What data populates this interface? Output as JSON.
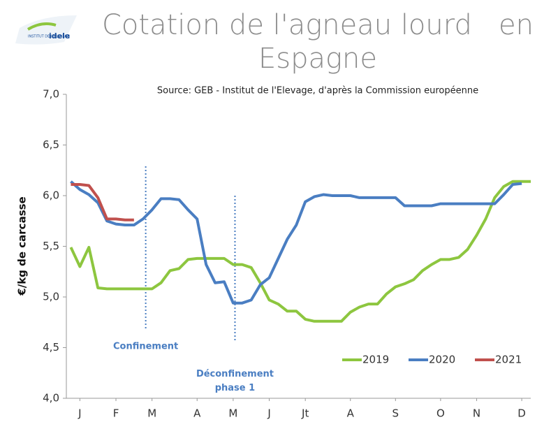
{
  "logo": {
    "line1": "INSTITUT DE L'ELEVAGE",
    "brand": "idele"
  },
  "chart_data": {
    "type": "line",
    "title": "Cotation de l'agneau lourd   en Espagne",
    "subtitle": "Source: GEB - Institut de l'Elevage, d'après la Commission européenne",
    "y_label": "€/kg de carcasse",
    "x": [
      1,
      2,
      3,
      4,
      5,
      6,
      7,
      8,
      9,
      10,
      11,
      12,
      13,
      14,
      15,
      16,
      17,
      18,
      19,
      20,
      21,
      22,
      23,
      24,
      25,
      26,
      27,
      28,
      29,
      30,
      31,
      32,
      33,
      34,
      35,
      36,
      37,
      38,
      39,
      40,
      41,
      42,
      43,
      44,
      45,
      46,
      47,
      48,
      49,
      50,
      51,
      52
    ],
    "xlim": [
      0.5,
      52
    ],
    "xticks": [
      {
        "value": 2,
        "label": "J"
      },
      {
        "value": 6,
        "label": "F"
      },
      {
        "value": 10,
        "label": "M"
      },
      {
        "value": 15,
        "label": "A"
      },
      {
        "value": 19,
        "label": "M"
      },
      {
        "value": 23,
        "label": "J"
      },
      {
        "value": 27,
        "label": "Jt"
      },
      {
        "value": 32,
        "label": "A"
      },
      {
        "value": 37,
        "label": "S"
      },
      {
        "value": 42,
        "label": "O"
      },
      {
        "value": 46,
        "label": "N"
      },
      {
        "value": 51,
        "label": "D"
      }
    ],
    "ylim": [
      4,
      7
    ],
    "yticks": [
      {
        "value": 4,
        "label": "4,0"
      },
      {
        "value": 4.5,
        "label": "4,5"
      },
      {
        "value": 5,
        "label": "5,0"
      },
      {
        "value": 5.5,
        "label": "5,5"
      },
      {
        "value": 6,
        "label": "6,0"
      },
      {
        "value": 6.5,
        "label": "6,5"
      },
      {
        "value": 7,
        "label": "7,0"
      }
    ],
    "annotations": [
      {
        "text": "Confinement",
        "x": 9.3
      },
      {
        "text": "Déconfinement phase 1",
        "x": 19.2
      }
    ],
    "series": [
      {
        "name": "2019",
        "color": "#8dc63f",
        "values": [
          5.49,
          5.3,
          5.49,
          5.09,
          5.08,
          5.08,
          5.08,
          5.08,
          5.08,
          5.08,
          5.14,
          5.26,
          5.28,
          5.37,
          5.38,
          5.38,
          5.38,
          5.38,
          5.32,
          5.32,
          5.29,
          5.14,
          4.97,
          4.93,
          4.86,
          4.86,
          4.78,
          4.76,
          4.76,
          4.76,
          4.76,
          4.85,
          4.9,
          4.93,
          4.93,
          5.03,
          5.1,
          5.13,
          5.17,
          5.26,
          5.32,
          5.37,
          5.37,
          5.39,
          5.47,
          5.61,
          5.77,
          5.98,
          6.09,
          6.14,
          6.14,
          6.14
        ]
      },
      {
        "name": "2020",
        "color": "#4a7ec2",
        "values": [
          6.14,
          6.06,
          6.01,
          5.93,
          5.75,
          5.72,
          5.71,
          5.71,
          5.77,
          5.86,
          5.97,
          5.97,
          5.96,
          5.86,
          5.77,
          5.32,
          5.14,
          5.15,
          4.94,
          4.94,
          4.97,
          5.12,
          5.19,
          5.38,
          5.57,
          5.71,
          5.94,
          5.99,
          6.01,
          6.0,
          6.0,
          6.0,
          5.98,
          5.98,
          5.98,
          5.98,
          5.98,
          5.9,
          5.9,
          5.9,
          5.9,
          5.92,
          5.92,
          5.92,
          5.92,
          5.92,
          5.92,
          5.92,
          6.01,
          6.11,
          6.12,
          null
        ]
      },
      {
        "name": "2021",
        "color": "#c0504d",
        "values": [
          6.11,
          6.11,
          6.1,
          5.98,
          5.77,
          5.77,
          5.76,
          5.76,
          null,
          null,
          null,
          null,
          null,
          null,
          null,
          null,
          null,
          null,
          null,
          null,
          null,
          null,
          null,
          null,
          null,
          null,
          null,
          null,
          null,
          null,
          null,
          null,
          null,
          null,
          null,
          null,
          null,
          null,
          null,
          null,
          null,
          null,
          null,
          null,
          null,
          null,
          null,
          null,
          null,
          null,
          null,
          null
        ]
      }
    ]
  }
}
